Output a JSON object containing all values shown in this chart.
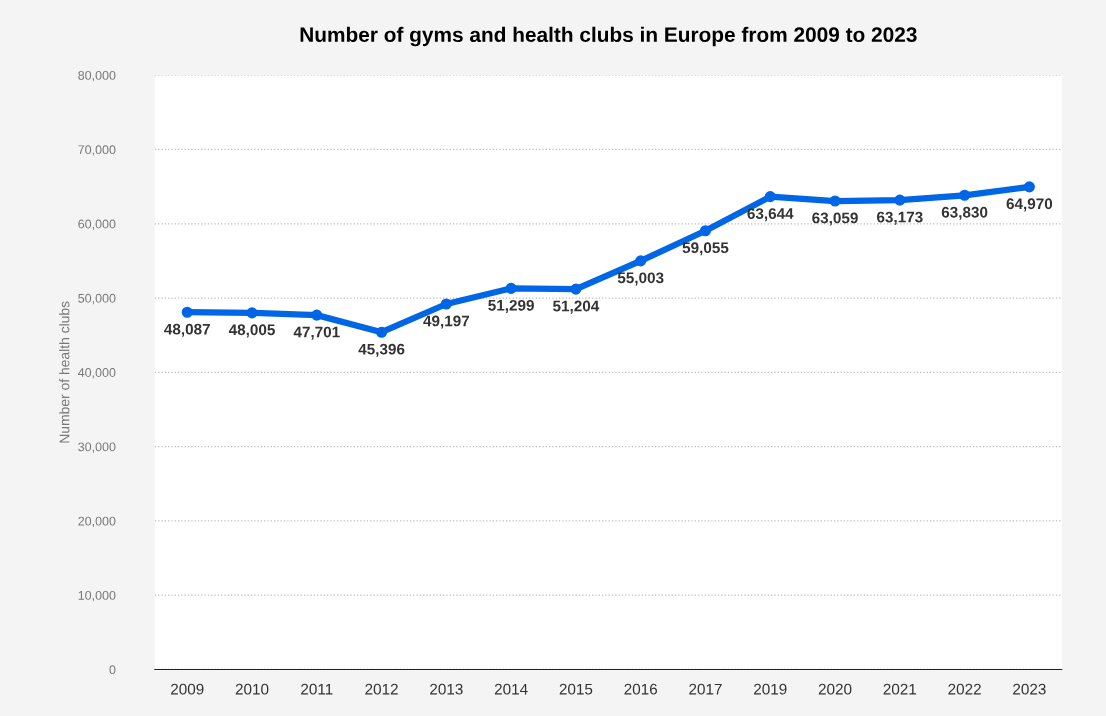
{
  "chart_data": {
    "type": "line",
    "title": "Number of gyms and health clubs in Europe from 2009 to 2023",
    "ylabel": "Number of health clubs",
    "categories": [
      "2009",
      "2010",
      "2011",
      "2012",
      "2013",
      "2014",
      "2015",
      "2016",
      "2017",
      "2019",
      "2020",
      "2021",
      "2022",
      "2023"
    ],
    "series": [
      {
        "color": "#0066e6",
        "values": [
          48087,
          48005,
          47701,
          45396,
          49197,
          51299,
          51204,
          55003,
          59055,
          63644,
          63059,
          63173,
          63830,
          64970
        ],
        "value_labels": [
          "48,087",
          "48,005",
          "47,701",
          "45,396",
          "49,197",
          "51,299",
          "51,204",
          "55,003",
          "59,055",
          "63,644",
          "63,059",
          "63,173",
          "63,830",
          "64,970"
        ]
      }
    ],
    "ylim": [
      0,
      80000
    ],
    "yticks": [
      0,
      {
        "value": 10000,
        "label": "10,000"
      },
      {
        "value": 20000,
        "label": "20,000"
      },
      {
        "value": 30000,
        "label": "30,000"
      },
      {
        "value": 40000,
        "label": "40,000"
      },
      {
        "value": 50000,
        "label": "50,000"
      },
      {
        "value": 60000,
        "label": "60,000"
      },
      {
        "value": 70000,
        "label": "70,000"
      },
      {
        "value": 80000,
        "label": "80,000"
      }
    ],
    "grid": "y",
    "marker": "circle",
    "line_style": "solid",
    "legend": false
  }
}
